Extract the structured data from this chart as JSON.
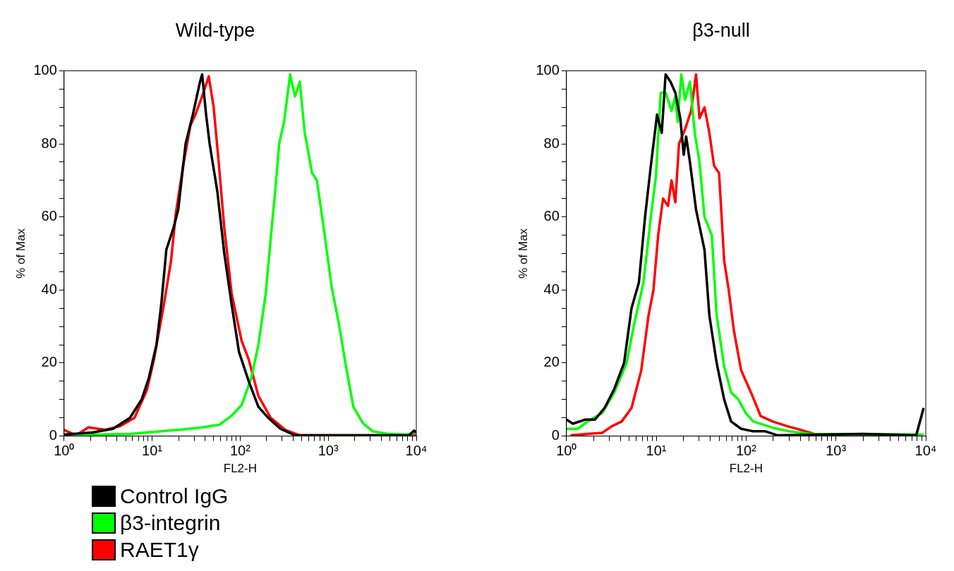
{
  "chart_data": [
    {
      "type": "line",
      "title": "Wild-type",
      "xlabel": "FL2-H",
      "ylabel": "% of Max",
      "log": "x",
      "marker": "none",
      "legend": "bottom left",
      "xlim": [
        1,
        10000
      ],
      "ylim": [
        0,
        100
      ],
      "xticks": [
        {
          "value": 1,
          "label": "10⁰"
        },
        {
          "value": 2,
          "label": null
        },
        {
          "value": 3,
          "label": null
        },
        {
          "value": 4,
          "label": null
        },
        {
          "value": 5,
          "label": null
        },
        {
          "value": 6,
          "label": null
        },
        {
          "value": 7,
          "label": null
        },
        {
          "value": 8,
          "label": null
        },
        {
          "value": 9,
          "label": null
        },
        {
          "value": 10,
          "label": "10¹"
        },
        {
          "value": 20,
          "label": null
        },
        {
          "value": 30,
          "label": null
        },
        {
          "value": 40,
          "label": null
        },
        {
          "value": 50,
          "label": null
        },
        {
          "value": 60,
          "label": null
        },
        {
          "value": 70,
          "label": null
        },
        {
          "value": 80,
          "label": null
        },
        {
          "value": 90,
          "label": null
        },
        {
          "value": 100,
          "label": "10²"
        },
        {
          "value": 200,
          "label": null
        },
        {
          "value": 300,
          "label": null
        },
        {
          "value": 400,
          "label": null
        },
        {
          "value": 500,
          "label": null
        },
        {
          "value": 600,
          "label": null
        },
        {
          "value": 700,
          "label": null
        },
        {
          "value": 800,
          "label": null
        },
        {
          "value": 900,
          "label": null
        },
        {
          "value": 1000,
          "label": "10³"
        },
        {
          "value": 2000,
          "label": null
        },
        {
          "value": 3000,
          "label": null
        },
        {
          "value": 4000,
          "label": null
        },
        {
          "value": 5000,
          "label": null
        },
        {
          "value": 6000,
          "label": null
        },
        {
          "value": 7000,
          "label": null
        },
        {
          "value": 8000,
          "label": null
        },
        {
          "value": 9000,
          "label": null
        },
        {
          "value": 10000,
          "label": "10⁴"
        }
      ],
      "yticks": [
        0,
        {
          "value": 5,
          "label": null
        },
        {
          "value": 10,
          "label": null
        },
        {
          "value": 15,
          "label": null
        },
        20,
        {
          "value": 25,
          "label": null
        },
        {
          "value": 30,
          "label": null
        },
        {
          "value": 35,
          "label": null
        },
        40,
        {
          "value": 45,
          "label": null
        },
        {
          "value": 50,
          "label": null
        },
        {
          "value": 55,
          "label": null
        },
        60,
        {
          "value": 65,
          "label": null
        },
        {
          "value": 70,
          "label": null
        },
        {
          "value": 75,
          "label": null
        },
        80,
        {
          "value": 85,
          "label": null
        },
        {
          "value": 90,
          "label": null
        },
        {
          "value": 95,
          "label": null
        },
        100
      ],
      "series": [
        {
          "name": "Control IgG",
          "color": "#000000",
          "x": [
            1,
            2.1,
            3.6,
            5.6,
            7.6,
            9.2,
            11.2,
            12.7,
            14.5,
            17.5,
            19.8,
            24,
            29,
            35,
            37,
            41,
            45,
            55,
            66,
            80,
            97,
            125,
            161,
            208,
            286,
            420,
            8300,
            9440,
            10000
          ],
          "values": [
            0.4,
            1,
            2,
            5,
            10,
            16,
            25,
            36,
            51,
            57,
            62,
            80,
            88,
            97,
            99,
            88,
            80,
            67,
            50,
            36,
            23,
            15,
            8,
            5,
            2,
            0.2,
            0.2,
            1.5,
            1
          ]
        },
        {
          "name": "β3-integrin",
          "color": "#00ff00",
          "x": [
            1,
            5.6,
            19.8,
            37,
            58,
            80,
            104,
            134,
            161,
            195,
            222,
            252,
            277,
            315,
            369,
            419,
            475,
            541,
            655,
            743,
            900,
            1090,
            1315,
            1592,
            1928,
            2483,
            3206,
            4690,
            7800,
            10000
          ],
          "values": [
            0.2,
            0.6,
            1.7,
            2.4,
            3.1,
            5.6,
            8.5,
            16,
            25,
            39,
            54,
            68,
            80,
            86,
            99,
            93,
            97,
            83,
            72,
            70,
            56,
            41,
            31,
            19,
            8,
            3.5,
            1.3,
            0.6,
            0.4,
            1
          ]
        },
        {
          "name": "RAET1γ",
          "color": "#ff0000",
          "x": [
            1,
            1.37,
            1.89,
            2.94,
            4.3,
            6.3,
            8.7,
            10.5,
            13.6,
            16.4,
            18.6,
            22.5,
            27.2,
            31,
            37,
            44,
            50,
            57,
            66,
            80,
            104,
            125,
            161,
            222,
            325,
            476,
            10000
          ],
          "values": [
            1.7,
            0.2,
            2.4,
            1.7,
            2.7,
            5,
            12.5,
            21,
            36,
            48,
            61,
            74,
            85,
            88,
            93,
            98.5,
            90,
            75,
            57,
            39,
            26,
            21,
            11,
            5,
            1.7,
            0.2,
            0.2
          ]
        }
      ]
    },
    {
      "type": "line",
      "title": "β3-null",
      "xlabel": "FL2-H",
      "ylabel": "% of Max",
      "log": "x",
      "marker": "none",
      "xlim": [
        1,
        10000
      ],
      "ylim": [
        0,
        100
      ],
      "xticks": [
        {
          "value": 1,
          "label": "10⁰"
        },
        {
          "value": 2,
          "label": null
        },
        {
          "value": 3,
          "label": null
        },
        {
          "value": 4,
          "label": null
        },
        {
          "value": 5,
          "label": null
        },
        {
          "value": 6,
          "label": null
        },
        {
          "value": 7,
          "label": null
        },
        {
          "value": 8,
          "label": null
        },
        {
          "value": 9,
          "label": null
        },
        {
          "value": 10,
          "label": "10¹"
        },
        {
          "value": 20,
          "label": null
        },
        {
          "value": 30,
          "label": null
        },
        {
          "value": 40,
          "label": null
        },
        {
          "value": 50,
          "label": null
        },
        {
          "value": 60,
          "label": null
        },
        {
          "value": 70,
          "label": null
        },
        {
          "value": 80,
          "label": null
        },
        {
          "value": 90,
          "label": null
        },
        {
          "value": 100,
          "label": "10²"
        },
        {
          "value": 200,
          "label": null
        },
        {
          "value": 300,
          "label": null
        },
        {
          "value": 400,
          "label": null
        },
        {
          "value": 500,
          "label": null
        },
        {
          "value": 600,
          "label": null
        },
        {
          "value": 700,
          "label": null
        },
        {
          "value": 800,
          "label": null
        },
        {
          "value": 900,
          "label": null
        },
        {
          "value": 1000,
          "label": "10³"
        },
        {
          "value": 2000,
          "label": null
        },
        {
          "value": 3000,
          "label": null
        },
        {
          "value": 4000,
          "label": null
        },
        {
          "value": 5000,
          "label": null
        },
        {
          "value": 6000,
          "label": null
        },
        {
          "value": 7000,
          "label": null
        },
        {
          "value": 8000,
          "label": null
        },
        {
          "value": 9000,
          "label": null
        },
        {
          "value": 10000,
          "label": "10⁴"
        }
      ],
      "yticks": [
        0,
        {
          "value": 5,
          "label": null
        },
        {
          "value": 10,
          "label": null
        },
        {
          "value": 15,
          "label": null
        },
        20,
        {
          "value": 25,
          "label": null
        },
        {
          "value": 30,
          "label": null
        },
        {
          "value": 35,
          "label": null
        },
        40,
        {
          "value": 45,
          "label": null
        },
        {
          "value": 50,
          "label": null
        },
        {
          "value": 55,
          "label": null
        },
        60,
        {
          "value": 65,
          "label": null
        },
        {
          "value": 70,
          "label": null
        },
        {
          "value": 75,
          "label": null
        },
        80,
        {
          "value": 85,
          "label": null
        },
        {
          "value": 90,
          "label": null
        },
        {
          "value": 95,
          "label": null
        },
        100
      ],
      "series": [
        {
          "color": "#000000",
          "x": [
            1,
            1.18,
            1.62,
            2.07,
            2.66,
            3.42,
            4.38,
            5.3,
            6.4,
            7.5,
            8.7,
            10.2,
            11.5,
            12.7,
            14.4,
            16.3,
            18.5,
            20.2,
            21.5,
            23.7,
            27.7,
            34.4,
            39,
            47,
            57,
            68,
            88,
            120,
            164,
            224,
            1990,
            7830,
            9460
          ],
          "values": [
            4.5,
            3.4,
            4.5,
            4.5,
            7.7,
            13,
            20,
            35,
            42,
            60,
            74,
            88,
            83,
            99,
            97,
            94,
            87,
            77,
            82,
            75,
            62,
            51,
            33,
            20,
            10,
            4,
            2,
            1.3,
            1.3,
            0.2,
            0.6,
            0.2,
            7.7
          ]
        },
        {
          "color": "#00ff00",
          "x": [
            1,
            1.34,
            1.72,
            2.5,
            3.42,
            4.67,
            5.6,
            7.2,
            8.7,
            9.9,
            11.2,
            12.7,
            14.8,
            16.3,
            17.3,
            19,
            20.9,
            23.7,
            26.8,
            30.3,
            34.4,
            41.5,
            47,
            57,
            68,
            82,
            99,
            120,
            197,
            305,
            504,
            9460
          ],
          "values": [
            2,
            2,
            4,
            6.3,
            12,
            20,
            30,
            42,
            60,
            71,
            94,
            94,
            89,
            93,
            86,
            99,
            92,
            97,
            83,
            75,
            60,
            55,
            33,
            19,
            12,
            10,
            6.3,
            4,
            2.3,
            1.3,
            0.6,
            0.4
          ]
        },
        {
          "color": "#ff0000",
          "x": [
            1.11,
            1.72,
            2.5,
            3.21,
            4.12,
            5.3,
            6.8,
            8.2,
            9.3,
            10.5,
            11.9,
            13.5,
            14.8,
            16.3,
            17.9,
            20.9,
            24.4,
            27.7,
            30.3,
            34.4,
            39,
            44,
            50,
            57,
            64,
            73,
            88,
            113,
            145,
            197,
            287,
            418,
            570
          ],
          "values": [
            0.2,
            0.6,
            0.9,
            2.7,
            4,
            7.7,
            18,
            33,
            40,
            55,
            65,
            63,
            70,
            64,
            80,
            84,
            89,
            99,
            87,
            90,
            83,
            74,
            72,
            48,
            40,
            29,
            18,
            12,
            5.5,
            4,
            2.7,
            1.6,
            0.6
          ]
        }
      ]
    }
  ]
}
